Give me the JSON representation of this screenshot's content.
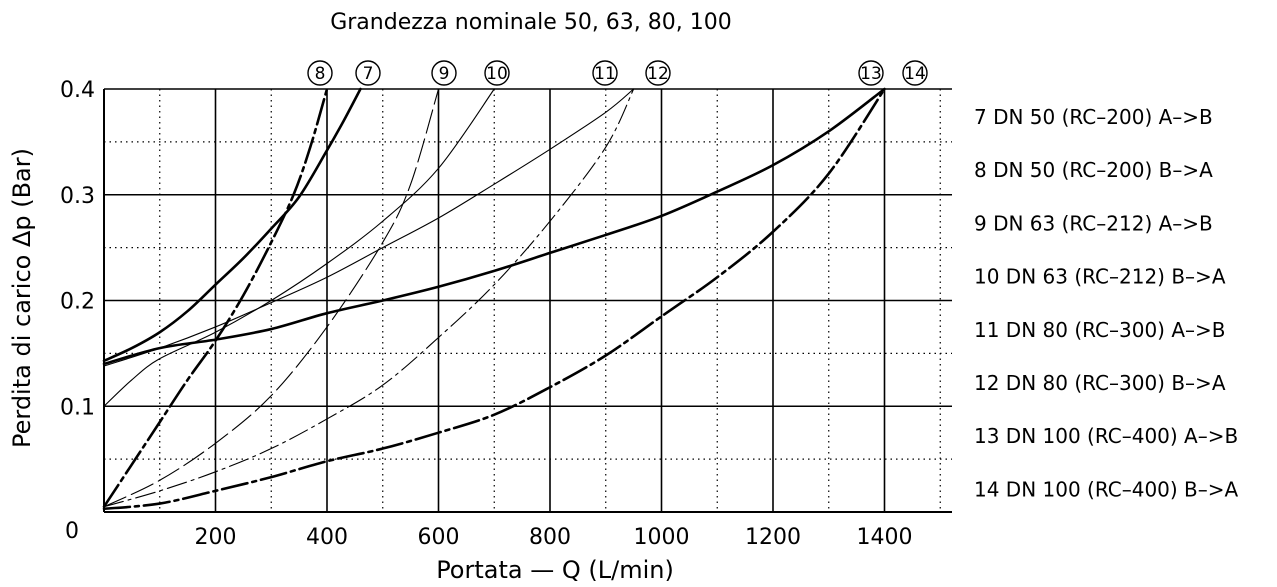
{
  "chart_data": {
    "type": "line",
    "title": "Grandezza nominale 50, 63, 80, 100",
    "xlabel": "Portata — Q (L/min)",
    "ylabel": "Perdita di carico Δp (Bar)",
    "xlim": [
      0,
      1500
    ],
    "ylim": [
      0,
      0.4
    ],
    "x_ticks": [
      200,
      400,
      600,
      800,
      1000,
      1200,
      1400
    ],
    "y_ticks": [
      0,
      0.1,
      0.2,
      0.3,
      0.4
    ],
    "origin_label": "0",
    "grid": true,
    "legend_position": "right",
    "series": [
      {
        "name": "7 DN 50 (RC–200) A–>B",
        "marker": "7",
        "style": "solid-bold",
        "points": [
          [
            0,
            0.143
          ],
          [
            50,
            0.155
          ],
          [
            100,
            0.17
          ],
          [
            150,
            0.19
          ],
          [
            200,
            0.215
          ],
          [
            250,
            0.24
          ],
          [
            300,
            0.268
          ],
          [
            350,
            0.298
          ],
          [
            400,
            0.342
          ],
          [
            430,
            0.37
          ],
          [
            460,
            0.4
          ]
        ]
      },
      {
        "name": "8 DN 50 (RC–200) B–>A",
        "marker": "8",
        "style": "dashdot-bold",
        "points": [
          [
            0,
            0.005
          ],
          [
            50,
            0.045
          ],
          [
            100,
            0.085
          ],
          [
            150,
            0.125
          ],
          [
            200,
            0.162
          ],
          [
            250,
            0.205
          ],
          [
            300,
            0.255
          ],
          [
            340,
            0.3
          ],
          [
            370,
            0.345
          ],
          [
            400,
            0.4
          ]
        ]
      },
      {
        "name": "9 DN 63 (RC–212) A–>B",
        "marker": "9",
        "style": "solid-thin",
        "points": [
          [
            0,
            0.1
          ],
          [
            50,
            0.125
          ],
          [
            100,
            0.145
          ],
          [
            200,
            0.17
          ],
          [
            300,
            0.2
          ],
          [
            400,
            0.235
          ],
          [
            500,
            0.275
          ],
          [
            600,
            0.325
          ],
          [
            700,
            0.4
          ]
        ]
      },
      {
        "name": "10 DN 63 (RC–212) B–>A",
        "marker": "10",
        "style": "dashed-thin",
        "points": [
          [
            0,
            0.005
          ],
          [
            100,
            0.03
          ],
          [
            200,
            0.065
          ],
          [
            300,
            0.11
          ],
          [
            400,
            0.175
          ],
          [
            500,
            0.255
          ],
          [
            550,
            0.31
          ],
          [
            600,
            0.4
          ]
        ]
      },
      {
        "name": "11 DN 80 (RC–300) A–>B",
        "marker": "11",
        "style": "solid-thin",
        "points": [
          [
            0,
            0.138
          ],
          [
            100,
            0.155
          ],
          [
            200,
            0.175
          ],
          [
            300,
            0.198
          ],
          [
            400,
            0.222
          ],
          [
            500,
            0.25
          ],
          [
            600,
            0.278
          ],
          [
            700,
            0.31
          ],
          [
            800,
            0.343
          ],
          [
            900,
            0.378
          ],
          [
            950,
            0.4
          ]
        ]
      },
      {
        "name": "12 DN 80 (RC–300) B–>A",
        "marker": "12",
        "style": "dashdot-thin",
        "points": [
          [
            0,
            0.005
          ],
          [
            100,
            0.02
          ],
          [
            200,
            0.038
          ],
          [
            300,
            0.06
          ],
          [
            400,
            0.088
          ],
          [
            500,
            0.12
          ],
          [
            600,
            0.165
          ],
          [
            700,
            0.215
          ],
          [
            800,
            0.275
          ],
          [
            900,
            0.345
          ],
          [
            950,
            0.4
          ]
        ]
      },
      {
        "name": "13 DN 100 (RC–400) A–>B",
        "marker": "13",
        "style": "solid-bold",
        "points": [
          [
            0,
            0.14
          ],
          [
            100,
            0.155
          ],
          [
            200,
            0.163
          ],
          [
            300,
            0.173
          ],
          [
            400,
            0.188
          ],
          [
            500,
            0.2
          ],
          [
            600,
            0.213
          ],
          [
            700,
            0.228
          ],
          [
            800,
            0.245
          ],
          [
            900,
            0.262
          ],
          [
            1000,
            0.28
          ],
          [
            1100,
            0.303
          ],
          [
            1200,
            0.328
          ],
          [
            1300,
            0.36
          ],
          [
            1400,
            0.4
          ]
        ]
      },
      {
        "name": "14 DN 100 (RC–400) B–>A",
        "marker": "14",
        "style": "dashdot-bold",
        "points": [
          [
            0,
            0.003
          ],
          [
            100,
            0.008
          ],
          [
            200,
            0.02
          ],
          [
            300,
            0.033
          ],
          [
            400,
            0.048
          ],
          [
            500,
            0.06
          ],
          [
            600,
            0.075
          ],
          [
            700,
            0.092
          ],
          [
            800,
            0.118
          ],
          [
            900,
            0.148
          ],
          [
            1000,
            0.185
          ],
          [
            1100,
            0.222
          ],
          [
            1200,
            0.265
          ],
          [
            1300,
            0.32
          ],
          [
            1400,
            0.4
          ]
        ]
      }
    ]
  }
}
